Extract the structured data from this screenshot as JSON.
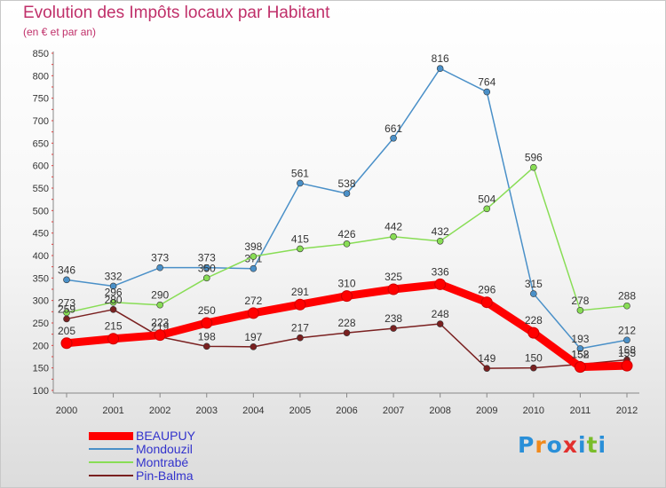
{
  "header": {
    "title": "Evolution des Impôts locaux par Habitant",
    "subtitle": "(en € et par an)"
  },
  "brand": {
    "letters": [
      "P",
      "r",
      "o",
      "x",
      "i",
      "t",
      "i"
    ]
  },
  "chart_data": {
    "type": "line",
    "title": "Evolution des Impôts locaux par Habitant",
    "subtitle": "(en € et par an)",
    "xlabel": "",
    "ylabel": "",
    "ylim": [
      100,
      850
    ],
    "grid": false,
    "legend_position": "bottom-left",
    "x": [
      "2000",
      "2001",
      "2002",
      "2003",
      "2004",
      "2005",
      "2006",
      "2007",
      "2008",
      "2009",
      "2010",
      "2011",
      "2012"
    ],
    "y_ticks": [
      100,
      150,
      200,
      250,
      300,
      350,
      400,
      450,
      500,
      550,
      600,
      650,
      700,
      750,
      800,
      850
    ],
    "series": [
      {
        "name": "BEAUPUY",
        "color": "#ff0000",
        "values": [
          205,
          215,
          223,
          250,
          272,
          291,
          310,
          325,
          336,
          296,
          228,
          152,
          155
        ]
      },
      {
        "name": "Mondouzil",
        "color": "#4a90c8",
        "values": [
          346,
          332,
          373,
          373,
          371,
          561,
          538,
          661,
          816,
          764,
          315,
          193,
          212
        ]
      },
      {
        "name": "Montrabé",
        "color": "#88dd55",
        "values": [
          273,
          296,
          290,
          350,
          398,
          415,
          426,
          442,
          432,
          504,
          596,
          278,
          288
        ]
      },
      {
        "name": "Pin-Balma",
        "color": "#7a2020",
        "values": [
          259,
          280,
          219,
          198,
          197,
          217,
          228,
          238,
          248,
          149,
          150,
          158,
          168
        ]
      }
    ]
  }
}
